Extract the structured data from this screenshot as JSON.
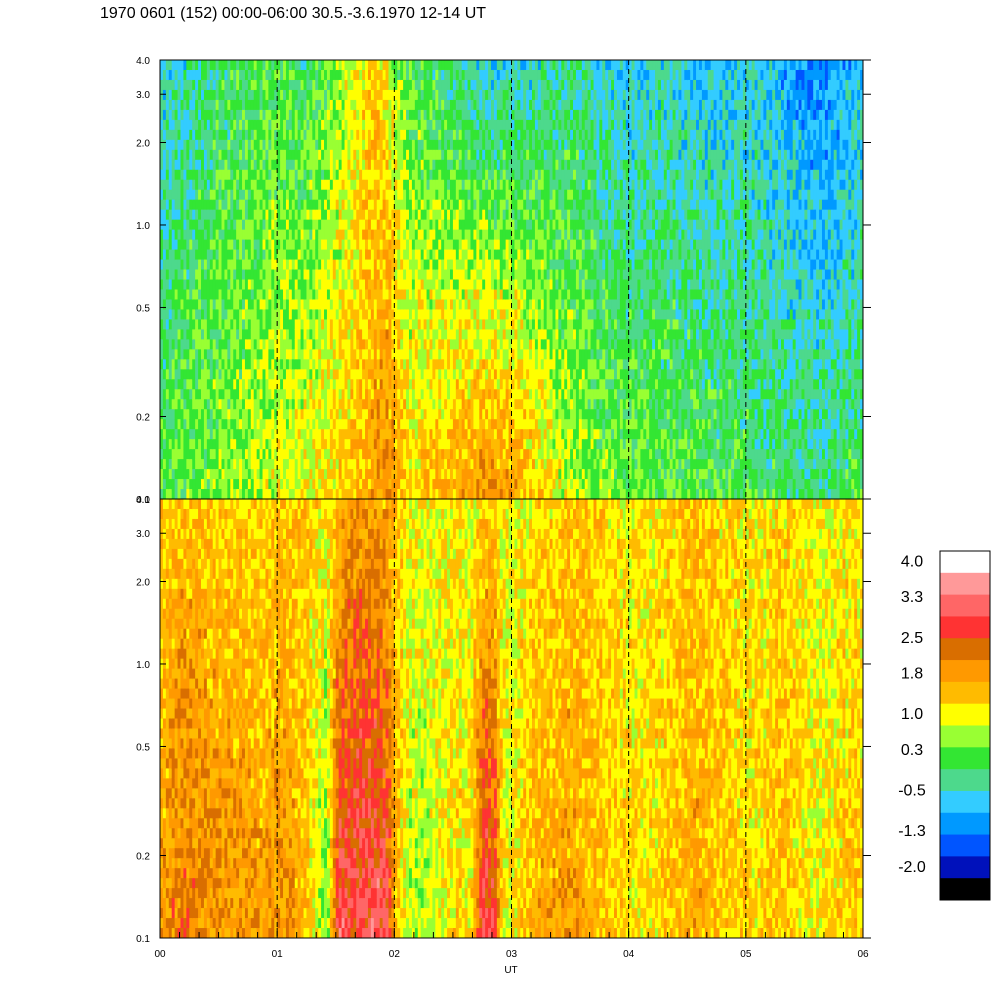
{
  "title": "1970 0601 (152) 00:00-06:00 30.5.-3.6.1970  12-14 UT",
  "chart_data": {
    "type": "heatmap",
    "xlabel": "UT",
    "x_range": [
      0,
      6
    ],
    "x_ticks": [
      "00",
      "01",
      "02",
      "03",
      "04",
      "05",
      "06"
    ],
    "dashed_hour_lines": [
      1,
      2,
      3,
      4,
      5
    ],
    "panels": [
      {
        "name": "upper",
        "y_scale": "log",
        "ylim": [
          0.1,
          4.0
        ],
        "y_ticks": [
          "0.1",
          "0.2",
          "0.5",
          "1.0",
          "2.0",
          "3.0",
          "4.0"
        ],
        "y_tick_values": [
          0.1,
          0.2,
          0.5,
          1.0,
          2.0,
          3.0,
          4.0
        ],
        "levels_low_freq": [
          0.4,
          0.5,
          0.6,
          0.6,
          0.7,
          0.7,
          0.8,
          0.8,
          0.9,
          1.0,
          1.1,
          1.1,
          1.2,
          1.2,
          1.3,
          1.4,
          1.5,
          1.6,
          1.8,
          2.0,
          1.8,
          1.4,
          1.5,
          1.6,
          1.7,
          1.8,
          1.9,
          2.0,
          2.0,
          1.9,
          1.8,
          1.6,
          1.4,
          1.2,
          1.0,
          0.9,
          0.8,
          0.7,
          0.7,
          0.6,
          0.6,
          0.6,
          0.5,
          0.5,
          0.5,
          0.5,
          0.4,
          0.4,
          0.4,
          0.4,
          0.3,
          0.3,
          0.3,
          0.2,
          0.2,
          0.2,
          0.2,
          0.2,
          0.3,
          0.3
        ],
        "levels_high_freq": [
          -0.3,
          -0.2,
          -0.1,
          0.0,
          0.1,
          0.2,
          0.2,
          0.3,
          0.3,
          0.4,
          0.4,
          0.3,
          0.2,
          0.3,
          0.5,
          0.7,
          1.0,
          1.3,
          1.5,
          1.2,
          0.6,
          0.4,
          0.3,
          0.2,
          0.1,
          0.0,
          -0.2,
          -0.3,
          -0.4,
          -0.3,
          -0.2,
          -0.2,
          -0.1,
          -0.1,
          0.0,
          0.0,
          -0.1,
          -0.2,
          -0.2,
          -0.3,
          -0.3,
          -0.3,
          -0.2,
          -0.2,
          -0.3,
          -0.4,
          -0.4,
          -0.3,
          -0.3,
          -0.3,
          -0.3,
          -0.4,
          -0.5,
          -0.6,
          -0.7,
          -0.8,
          -0.7,
          -0.6,
          -0.5,
          -0.4
        ]
      },
      {
        "name": "lower",
        "y_scale": "log",
        "ylim": [
          0.1,
          4.0
        ],
        "y_ticks": [
          "0.1",
          "0.2",
          "0.5",
          "1.0",
          "2.0",
          "3.0",
          "4.0"
        ],
        "y_tick_values": [
          0.1,
          0.2,
          0.5,
          1.0,
          2.0,
          3.0,
          4.0
        ],
        "levels_low_freq": [
          1.8,
          2.1,
          2.2,
          2.2,
          2.1,
          2.0,
          2.0,
          2.0,
          1.9,
          1.9,
          2.0,
          1.9,
          1.6,
          1.2,
          0.5,
          3.0,
          2.8,
          2.9,
          3.0,
          2.8,
          1.5,
          0.9,
          0.8,
          1.0,
          1.2,
          1.4,
          1.1,
          2.9,
          2.8,
          1.0,
          1.4,
          1.6,
          1.8,
          1.8,
          1.9,
          1.8,
          1.8,
          1.6,
          1.5,
          1.4,
          1.3,
          1.3,
          1.4,
          1.6,
          1.7,
          1.8,
          1.7,
          1.6,
          1.5,
          1.4,
          1.4,
          1.5,
          1.6,
          1.5,
          1.3,
          1.2,
          1.3,
          1.4,
          1.5,
          1.5
        ],
        "levels_high_freq": [
          1.5,
          1.5,
          1.6,
          1.6,
          1.5,
          1.5,
          1.4,
          1.4,
          1.4,
          1.4,
          1.5,
          1.5,
          1.5,
          1.4,
          1.3,
          1.6,
          1.9,
          2.0,
          1.9,
          1.7,
          1.5,
          1.3,
          1.2,
          1.2,
          1.2,
          1.3,
          1.2,
          1.3,
          1.4,
          1.2,
          1.2,
          1.3,
          1.4,
          1.4,
          1.5,
          1.5,
          1.5,
          1.4,
          1.4,
          1.3,
          1.3,
          1.3,
          1.3,
          1.4,
          1.5,
          1.5,
          1.5,
          1.4,
          1.4,
          1.3,
          1.3,
          1.3,
          1.4,
          1.4,
          1.3,
          1.2,
          1.2,
          1.3,
          1.3,
          1.3
        ]
      }
    ],
    "colorbar": {
      "labels": [
        "4.0",
        "3.3",
        "2.5",
        "1.8",
        "1.0",
        "0.3",
        "-0.5",
        "-1.3",
        "-2.0"
      ],
      "label_values": [
        4.0,
        3.3,
        2.5,
        1.8,
        1.0,
        0.3,
        -0.5,
        -1.3,
        -2.0
      ],
      "range": [
        -2.0,
        4.0
      ],
      "colors_top_to_bottom": [
        "#ffffff",
        "#ff9999",
        "#ff6666",
        "#ff3333",
        "#d96e00",
        "#ff9900",
        "#ffbb00",
        "#ffff00",
        "#99ff33",
        "#33e633",
        "#4dd98c",
        "#33ccff",
        "#0099ff",
        "#0055ff",
        "#0011bb",
        "#000000"
      ]
    }
  }
}
